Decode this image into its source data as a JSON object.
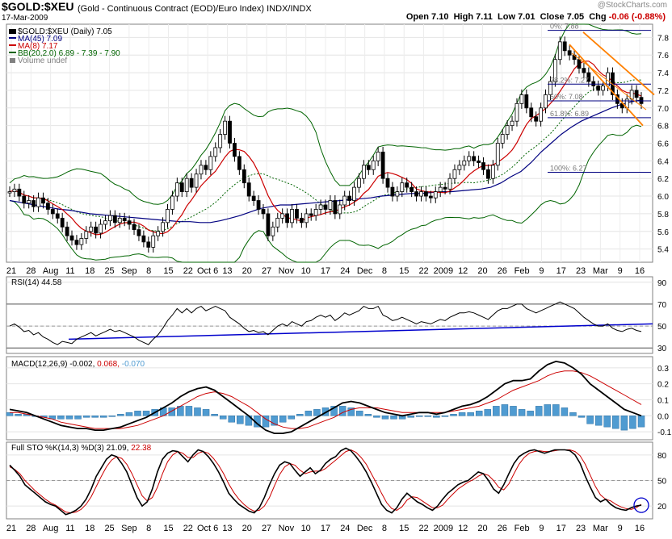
{
  "header": {
    "symbol": "$GOLD:$XEU",
    "description": "(Gold - Continuous Contract (EOD)/Euro Index)",
    "exchange": "INDX/INDX",
    "date": "17-Mar-2009",
    "brand": "@StockCharts.com",
    "ohlc": {
      "open_label": "Open",
      "open": "7.10",
      "high_label": "High",
      "high": "7.11",
      "low_label": "Low",
      "low": "7.01",
      "close_label": "Close",
      "close": "7.05",
      "chg_label": "Chg",
      "chg": "-0.06 (-0.88%)"
    }
  },
  "colors": {
    "price": "#000000",
    "ma45": "#000080",
    "ma8": "#cc0000",
    "bb": "#006400",
    "volume": "#808080",
    "channel": "#ff8000",
    "fib": "#000080",
    "rsi": "#000000",
    "rsi_trend": "#0000cc",
    "macd": "#000000",
    "signal": "#cc0000",
    "histogram": "#4f9bd1",
    "sto_k": "#000000",
    "sto_d": "#cc0000",
    "circle": "#0000cc"
  },
  "chart_data": [
    {
      "type": "line",
      "panel": "price",
      "legend": {
        "price": "$GOLD:$XEU (Daily) 7.05",
        "ma45": "MA(45) 7.09",
        "ma8": "MA(8) 7.17",
        "bb": "BB(20,2.0) 6.89 - 7.39 - 7.90",
        "volume": "Volume undef"
      },
      "x_tick_labels": [
        "21",
        "28",
        "Aug",
        "11",
        "18",
        "25",
        "Sep",
        "8",
        "15",
        "22",
        "Oct 6",
        "13",
        "20",
        "27",
        "Nov",
        "10",
        "17",
        "24",
        "Dec",
        "8",
        "15",
        "22",
        "2009",
        "12",
        "20",
        "26",
        "Feb",
        "9",
        "17",
        "23",
        "Mar",
        "9",
        "16"
      ],
      "y_ticks": [
        5.4,
        5.6,
        5.8,
        6.0,
        6.2,
        6.4,
        6.6,
        6.8,
        7.0,
        7.2,
        7.4,
        7.6,
        7.8
      ],
      "ylim": [
        5.25,
        7.95
      ],
      "close": [
        6.05,
        6.08,
        6.0,
        5.92,
        5.95,
        5.88,
        5.98,
        5.92,
        5.85,
        5.8,
        5.75,
        5.65,
        5.55,
        5.5,
        5.45,
        5.52,
        5.6,
        5.65,
        5.58,
        5.68,
        5.72,
        5.78,
        5.7,
        5.75,
        5.72,
        5.68,
        5.62,
        5.55,
        5.48,
        5.42,
        5.55,
        5.6,
        5.7,
        5.85,
        6.0,
        6.15,
        6.05,
        6.2,
        6.1,
        6.25,
        6.35,
        6.3,
        6.45,
        6.55,
        6.7,
        6.85,
        6.6,
        6.45,
        6.3,
        6.15,
        6.0,
        5.95,
        5.85,
        5.8,
        5.55,
        5.65,
        5.75,
        5.8,
        5.7,
        5.85,
        5.75,
        5.7,
        5.8,
        5.78,
        5.85,
        5.9,
        5.85,
        5.95,
        5.8,
        5.9,
        6.0,
        5.95,
        6.1,
        6.2,
        6.35,
        6.3,
        6.4,
        6.5,
        6.2,
        6.1,
        6.0,
        6.05,
        6.15,
        6.1,
        6.05,
        6.0,
        6.05,
        6.0,
        5.98,
        6.05,
        6.1,
        6.08,
        6.2,
        6.3,
        6.35,
        6.4,
        6.45,
        6.4,
        6.38,
        6.3,
        6.2,
        6.35,
        6.6,
        6.7,
        6.8,
        6.85,
        7.05,
        7.15,
        7.0,
        6.9,
        6.85,
        7.0,
        7.15,
        7.3,
        7.55,
        7.75,
        7.65,
        7.6,
        7.55,
        7.45,
        7.4,
        7.3,
        7.25,
        7.2,
        7.25,
        7.4,
        7.15,
        7.05,
        7.0,
        7.1,
        7.2,
        7.12,
        7.05
      ],
      "ma45": [
        5.95,
        5.93,
        5.91,
        5.89,
        5.87,
        5.85,
        5.84,
        5.82,
        5.8,
        5.79,
        5.78,
        5.77,
        5.76,
        5.75,
        5.74,
        5.73,
        5.72,
        5.71,
        5.71,
        5.7,
        5.7,
        5.72,
        5.75,
        5.78,
        5.82,
        5.86,
        5.88,
        5.9,
        5.9,
        5.91,
        5.92,
        5.93,
        5.94,
        5.95,
        5.96,
        5.97,
        5.98,
        6.0,
        6.01,
        6.02,
        6.03,
        6.03,
        6.04,
        6.05,
        6.05,
        6.06,
        6.07,
        6.08,
        6.1,
        6.15,
        6.22,
        6.28,
        6.38,
        6.5,
        6.6,
        6.7,
        6.78,
        6.85,
        6.9,
        6.95,
        7.0,
        7.04,
        7.07,
        7.09
      ],
      "bb_upper_desc": "wide envelope around price, peaks near 7.9 at late Feb",
      "channel_upper": [
        [
          7.85,
          "Feb 23"
        ],
        [
          7.2,
          "Mar 16"
        ]
      ],
      "channel_lower": [
        [
          7.45,
          "Feb 23"
        ],
        [
          6.78,
          "Mar 16"
        ]
      ],
      "fib_levels": [
        {
          "label": "0%: 7.88",
          "value": 7.88
        },
        {
          "label": "38.2%: 7.27",
          "value": 7.27
        },
        {
          "label": "50%: 7.08",
          "value": 7.08
        },
        {
          "label": "61.8%: 6.89",
          "value": 6.89
        },
        {
          "label": "100%: 6.27",
          "value": 6.27
        }
      ]
    },
    {
      "type": "line",
      "panel": "rsi",
      "title": "RSI(14) 44.58",
      "y_ticks": [
        30,
        50,
        70,
        90
      ],
      "ylim": [
        25,
        95
      ],
      "overbought": 70,
      "oversold": 30,
      "values": [
        50,
        52,
        49,
        45,
        46,
        42,
        44,
        40,
        38,
        35,
        33,
        36,
        35,
        34,
        38,
        40,
        42,
        44,
        41,
        43,
        45,
        47,
        45,
        46,
        44,
        42,
        40,
        37,
        35,
        33,
        38,
        42,
        48,
        55,
        60,
        66,
        62,
        66,
        62,
        66,
        68,
        64,
        66,
        68,
        66,
        64,
        58,
        55,
        52,
        48,
        45,
        46,
        44,
        45,
        42,
        46,
        50,
        52,
        50,
        54,
        52,
        50,
        54,
        55,
        58,
        60,
        58,
        60,
        55,
        58,
        62,
        60,
        62,
        64,
        68,
        66,
        66,
        68,
        60,
        58,
        55,
        56,
        58,
        56,
        54,
        52,
        54,
        53,
        52,
        54,
        56,
        55,
        58,
        60,
        62,
        62,
        63,
        62,
        60,
        58,
        56,
        60,
        64,
        66,
        66,
        68,
        70,
        70,
        66,
        64,
        62,
        64,
        66,
        68,
        70,
        72,
        70,
        68,
        66,
        62,
        58,
        55,
        52,
        50,
        50,
        52,
        48,
        46,
        45,
        47,
        48,
        46,
        45
      ],
      "trend": [
        [
          38,
          "start"
        ],
        [
          52,
          "end"
        ]
      ]
    },
    {
      "type": "line",
      "panel": "macd",
      "title": "MACD(12,26,9) -0.002, 0.068, -0.070",
      "series_labels": {
        "macd": "-0.002",
        "signal": "0.068",
        "histogram": "-0.070"
      },
      "y_ticks": [
        -0.1,
        0.0,
        0.1,
        0.2,
        0.3
      ],
      "ylim": [
        -0.15,
        0.37
      ],
      "macd": [
        0.04,
        0.03,
        0.02,
        0.0,
        -0.02,
        -0.04,
        -0.06,
        -0.07,
        -0.08,
        -0.08,
        -0.09,
        -0.09,
        -0.08,
        -0.07,
        -0.05,
        -0.03,
        -0.01,
        0.02,
        0.05,
        0.08,
        0.12,
        0.15,
        0.17,
        0.18,
        0.16,
        0.12,
        0.08,
        0.04,
        0.0,
        -0.05,
        -0.09,
        -0.11,
        -0.11,
        -0.1,
        -0.07,
        -0.04,
        -0.01,
        0.02,
        0.05,
        0.08,
        0.09,
        0.08,
        0.06,
        0.04,
        0.02,
        0.01,
        0.0,
        0.01,
        0.02,
        0.02,
        0.01,
        0.02,
        0.04,
        0.06,
        0.07,
        0.09,
        0.12,
        0.16,
        0.2,
        0.22,
        0.22,
        0.23,
        0.28,
        0.32,
        0.34,
        0.33,
        0.3,
        0.26,
        0.2,
        0.16,
        0.12,
        0.08,
        0.04,
        0.02,
        0.0
      ],
      "signal": [
        0.02,
        0.02,
        0.01,
        0.0,
        -0.01,
        -0.02,
        -0.04,
        -0.05,
        -0.06,
        -0.07,
        -0.08,
        -0.08,
        -0.08,
        -0.08,
        -0.07,
        -0.06,
        -0.04,
        -0.02,
        0.0,
        0.03,
        0.06,
        0.09,
        0.12,
        0.14,
        0.15,
        0.14,
        0.12,
        0.09,
        0.06,
        0.02,
        -0.02,
        -0.05,
        -0.07,
        -0.08,
        -0.08,
        -0.07,
        -0.05,
        -0.03,
        -0.01,
        0.02,
        0.04,
        0.05,
        0.05,
        0.05,
        0.04,
        0.03,
        0.02,
        0.02,
        0.02,
        0.02,
        0.02,
        0.02,
        0.03,
        0.04,
        0.05,
        0.06,
        0.08,
        0.1,
        0.13,
        0.16,
        0.18,
        0.2,
        0.22,
        0.25,
        0.27,
        0.28,
        0.28,
        0.27,
        0.25,
        0.22,
        0.19,
        0.16,
        0.13,
        0.1,
        0.07
      ]
    },
    {
      "type": "line",
      "panel": "stochastic",
      "title": "Full STO %K(14,3) %D(3) 21.09, 22.38",
      "series_labels": {
        "k": "21.09",
        "d": "22.38"
      },
      "y_ticks": [
        20,
        50,
        80
      ],
      "ylim": [
        5,
        95
      ],
      "k": [
        68,
        62,
        55,
        45,
        40,
        35,
        30,
        25,
        22,
        20,
        15,
        10,
        12,
        15,
        20,
        28,
        40,
        55,
        65,
        75,
        80,
        78,
        70,
        60,
        45,
        30,
        20,
        25,
        40,
        60,
        75,
        82,
        85,
        84,
        78,
        72,
        80,
        86,
        84,
        78,
        70,
        60,
        48,
        35,
        28,
        22,
        18,
        14,
        12,
        18,
        30,
        45,
        58,
        68,
        72,
        70,
        62,
        55,
        60,
        65,
        58,
        62,
        70,
        75,
        78,
        85,
        88,
        85,
        78,
        70,
        60,
        48,
        35,
        22,
        15,
        12,
        18,
        28,
        35,
        30,
        25,
        22,
        18,
        15,
        20,
        28,
        35,
        40,
        45,
        48,
        50,
        55,
        60,
        58,
        50,
        40,
        35,
        45,
        58,
        70,
        78,
        82,
        85,
        86,
        84,
        82,
        84,
        86,
        86,
        86,
        85,
        80,
        70,
        55,
        42,
        30,
        25,
        28,
        22,
        18,
        16,
        15,
        18,
        20,
        21
      ],
      "d": [
        66,
        63,
        58,
        50,
        44,
        38,
        33,
        28,
        24,
        21,
        17,
        13,
        12,
        13,
        16,
        22,
        31,
        43,
        55,
        66,
        74,
        78,
        76,
        69,
        58,
        45,
        32,
        26,
        30,
        42,
        58,
        72,
        80,
        84,
        82,
        77,
        77,
        82,
        84,
        82,
        76,
        68,
        58,
        46,
        36,
        28,
        22,
        17,
        14,
        15,
        20,
        30,
        44,
        57,
        66,
        70,
        68,
        62,
        58,
        60,
        61,
        61,
        64,
        69,
        74,
        79,
        84,
        86,
        83,
        77,
        69,
        58,
        47,
        35,
        24,
        17,
        15,
        19,
        27,
        31,
        30,
        26,
        22,
        18,
        18,
        21,
        28,
        34,
        40,
        44,
        48,
        51,
        55,
        58,
        56,
        50,
        42,
        39,
        46,
        58,
        69,
        77,
        82,
        84,
        85,
        84,
        84,
        85,
        86,
        86,
        86,
        84,
        79,
        69,
        56,
        43,
        33,
        28,
        26,
        22,
        19,
        17,
        16,
        18,
        22
      ]
    }
  ]
}
